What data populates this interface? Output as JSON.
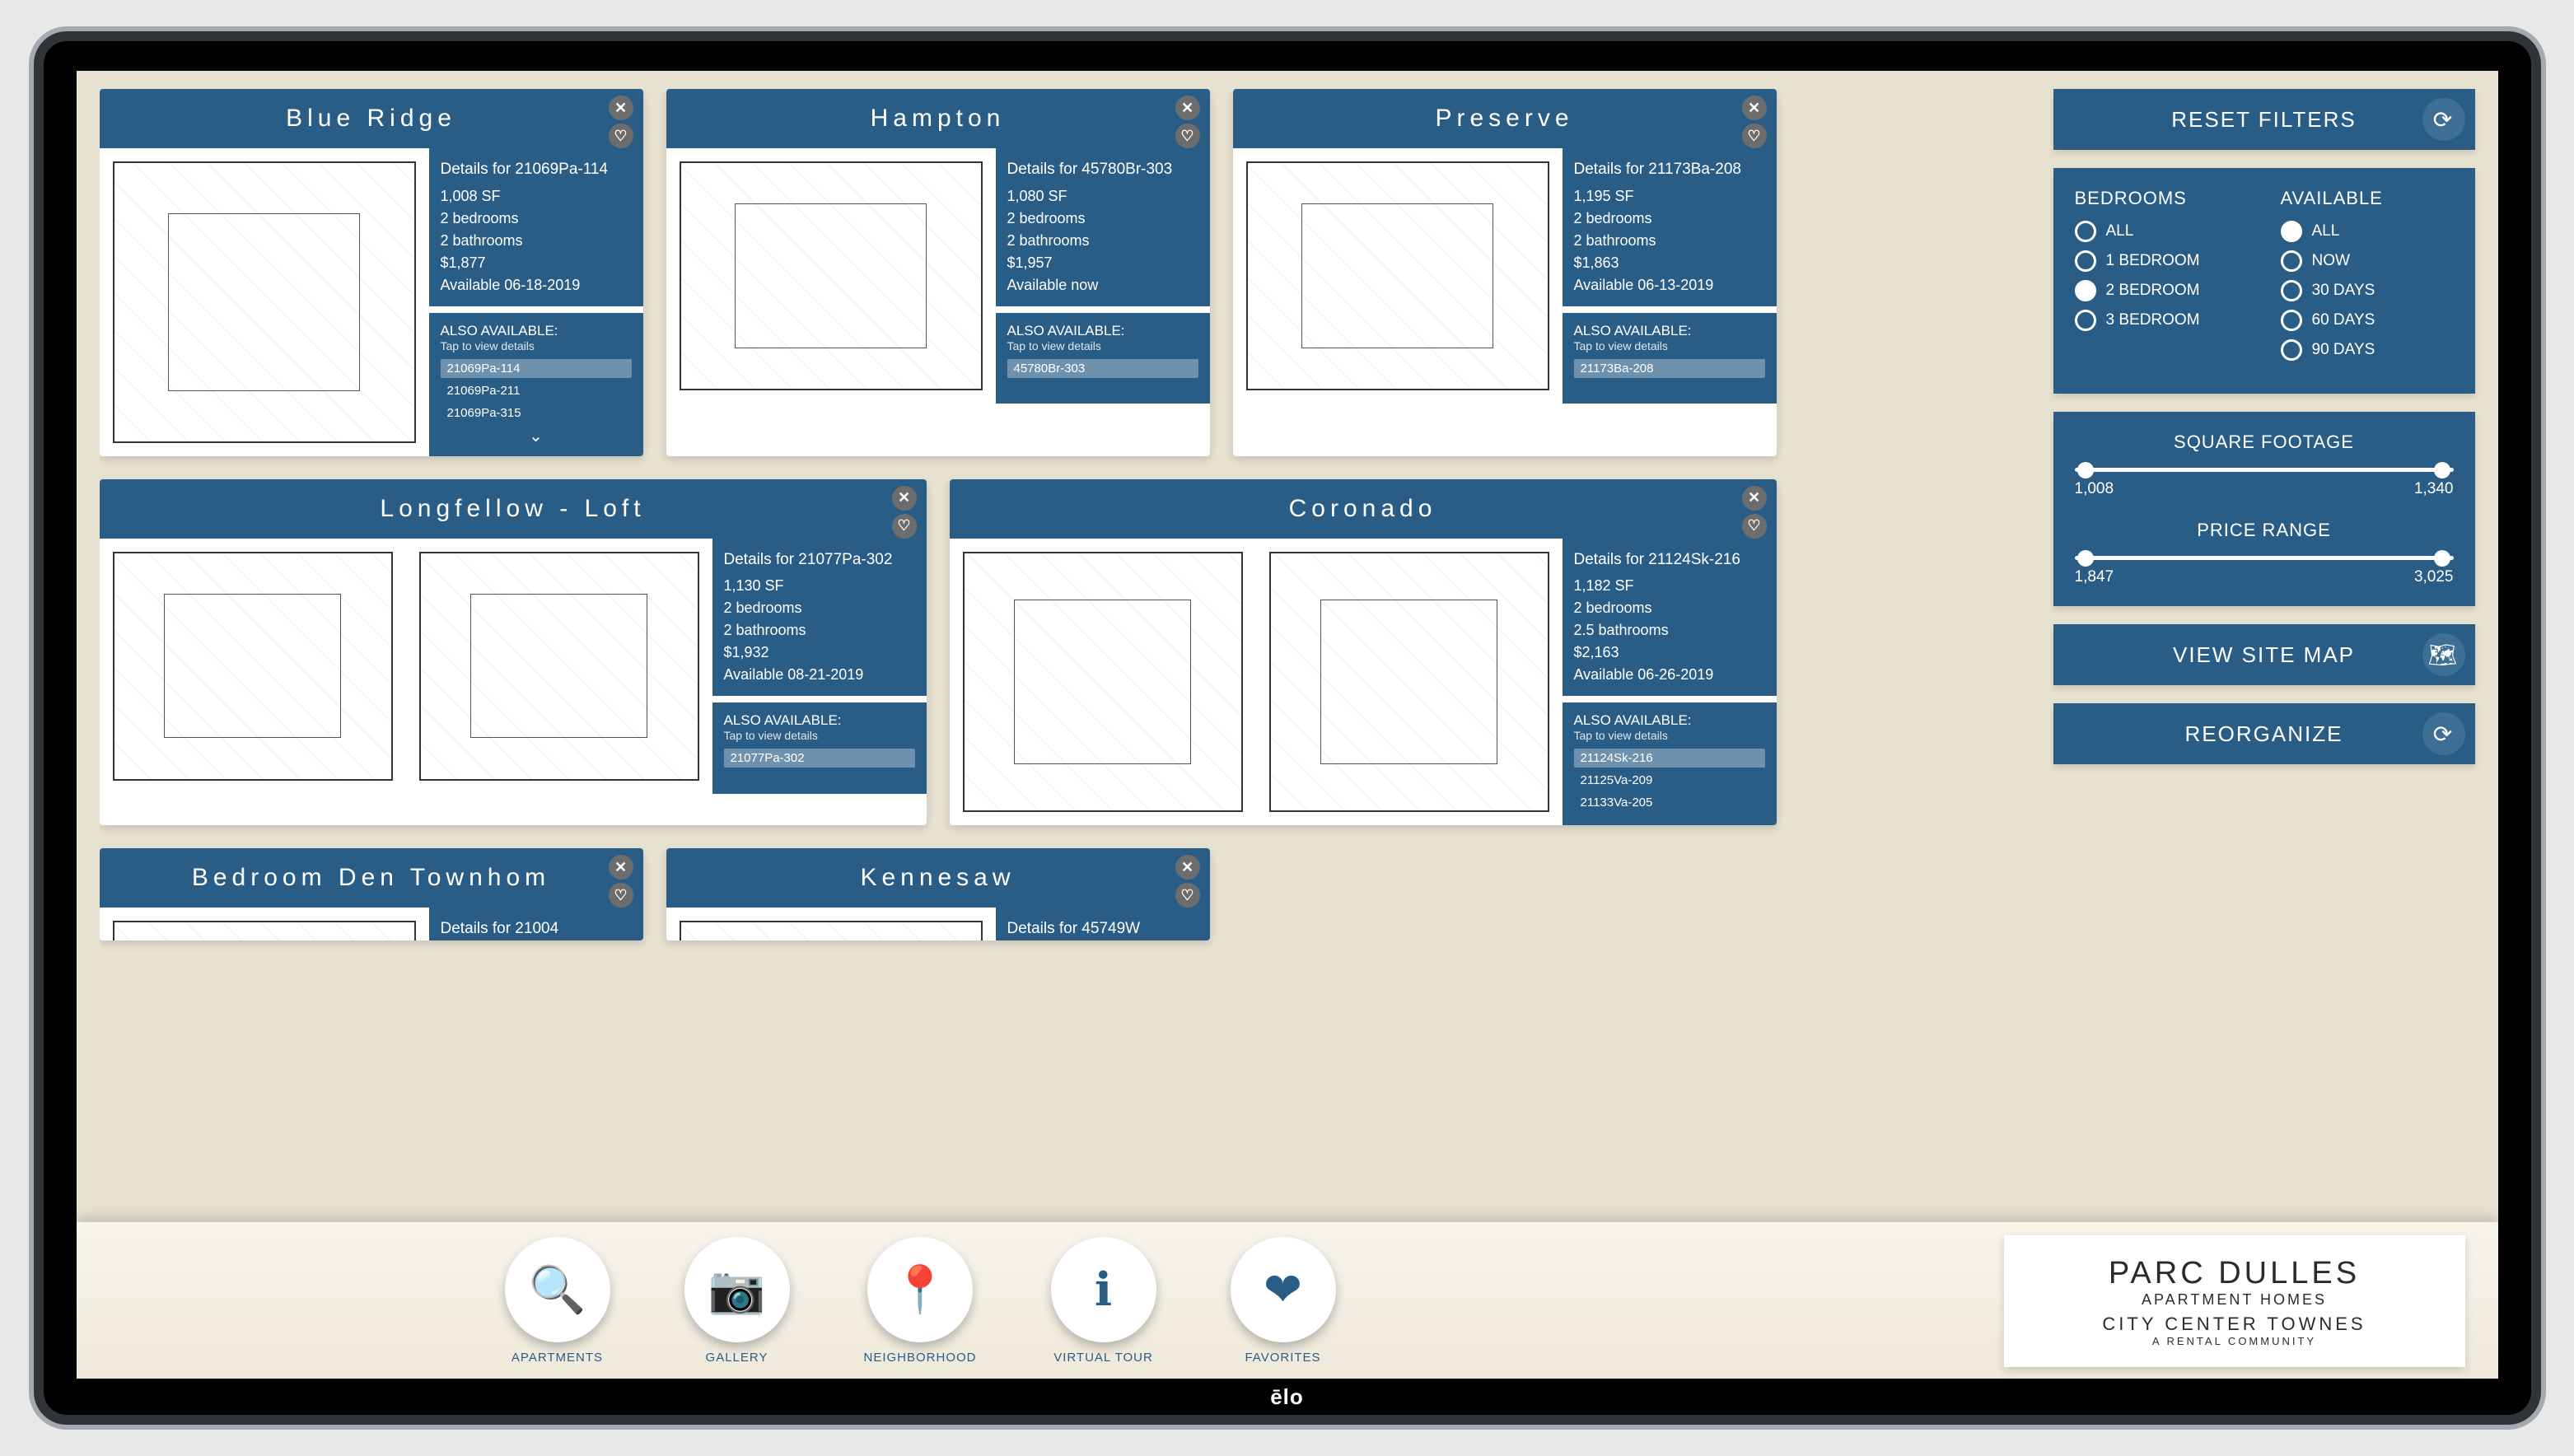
{
  "device_brand": "ēlo",
  "sidebar": {
    "reset_label": "RESET FILTERS",
    "sitemap_label": "VIEW SITE MAP",
    "reorganize_label": "REORGANIZE",
    "bedrooms": {
      "title": "BEDROOMS",
      "opts": [
        "ALL",
        "1 BEDROOM",
        "2 BEDROOM",
        "3 BEDROOM"
      ],
      "selected": 2
    },
    "available": {
      "title": "AVAILABLE",
      "opts": [
        "ALL",
        "NOW",
        "30 DAYS",
        "60 DAYS",
        "90 DAYS"
      ],
      "selected": 0
    },
    "sqft": {
      "label": "SQUARE FOOTAGE",
      "min": "1,008",
      "max": "1,340"
    },
    "price": {
      "label": "PRICE RANGE",
      "min": "1,847",
      "max": "3,025"
    }
  },
  "dock": {
    "items": [
      {
        "icon": "🔍",
        "label": "APARTMENTS"
      },
      {
        "icon": "📷",
        "label": "GALLERY"
      },
      {
        "icon": "📍",
        "label": "NEIGHBORHOOD"
      },
      {
        "icon": "ℹ",
        "label": "VIRTUAL TOUR"
      },
      {
        "icon": "❤",
        "label": "FAVORITES"
      }
    ],
    "logo": {
      "l1": "PARC DULLES",
      "l2": "APARTMENT HOMES",
      "l3": "CITY CENTER TOWNES",
      "l4": "A RENTAL COMMUNITY"
    }
  },
  "cards": [
    {
      "title": "Blue Ridge",
      "size": "small",
      "details_hdr": "Details for 21069Pa-114",
      "details": [
        "1,008 SF",
        "2 bedrooms",
        "2 bathrooms",
        "$1,877",
        "Available 06-18-2019"
      ],
      "also_label": "ALSO AVAILABLE:",
      "tap": "Tap to view details",
      "units": [
        {
          "t": "21069Pa-114",
          "sel": true
        },
        {
          "t": "21069Pa-211"
        },
        {
          "t": "21069Pa-315"
        }
      ],
      "more": true
    },
    {
      "title": "Hampton",
      "size": "small",
      "details_hdr": "Details for 45780Br-303",
      "details": [
        "1,080 SF",
        "2 bedrooms",
        "2 bathrooms",
        "$1,957",
        "Available now"
      ],
      "also_label": "ALSO AVAILABLE:",
      "tap": "Tap to view details",
      "units": [
        {
          "t": "45780Br-303",
          "sel": true
        }
      ]
    },
    {
      "title": "Preserve",
      "size": "small",
      "details_hdr": "Details for 21173Ba-208",
      "details": [
        "1,195 SF",
        "2 bedrooms",
        "2 bathrooms",
        "$1,863",
        "Available 06-13-2019"
      ],
      "also_label": "ALSO AVAILABLE:",
      "tap": "Tap to view details",
      "units": [
        {
          "t": "21173Ba-208",
          "sel": true
        }
      ]
    },
    {
      "title": "Longfellow - Loft",
      "size": "wide",
      "details_hdr": "Details for 21077Pa-302",
      "details": [
        "1,130 SF",
        "2 bedrooms",
        "2 bathrooms",
        "$1,932",
        "Available 08-21-2019"
      ],
      "also_label": "ALSO AVAILABLE:",
      "tap": "Tap to view details",
      "units": [
        {
          "t": "21077Pa-302",
          "sel": true
        }
      ]
    },
    {
      "title": "Coronado",
      "size": "wide",
      "details_hdr": "Details for 21124Sk-216",
      "details": [
        "1,182 SF",
        "2 bedrooms",
        "2.5 bathrooms",
        "$2,163",
        "Available 06-26-2019"
      ],
      "also_label": "ALSO AVAILABLE:",
      "tap": "Tap to view details",
      "units": [
        {
          "t": "21124Sk-216",
          "sel": true
        },
        {
          "t": "21125Va-209"
        },
        {
          "t": "21133Va-205"
        }
      ]
    },
    {
      "title": "Bedroom Den Townhom",
      "size": "small",
      "truncated": true,
      "details_hdr": "Details for 21004",
      "details": [],
      "also_label": "",
      "tap": "",
      "units": []
    },
    {
      "title": "Kennesaw",
      "size": "small",
      "truncated": true,
      "details_hdr": "Details for 45749W",
      "details": [],
      "also_label": "",
      "tap": "",
      "units": []
    }
  ]
}
